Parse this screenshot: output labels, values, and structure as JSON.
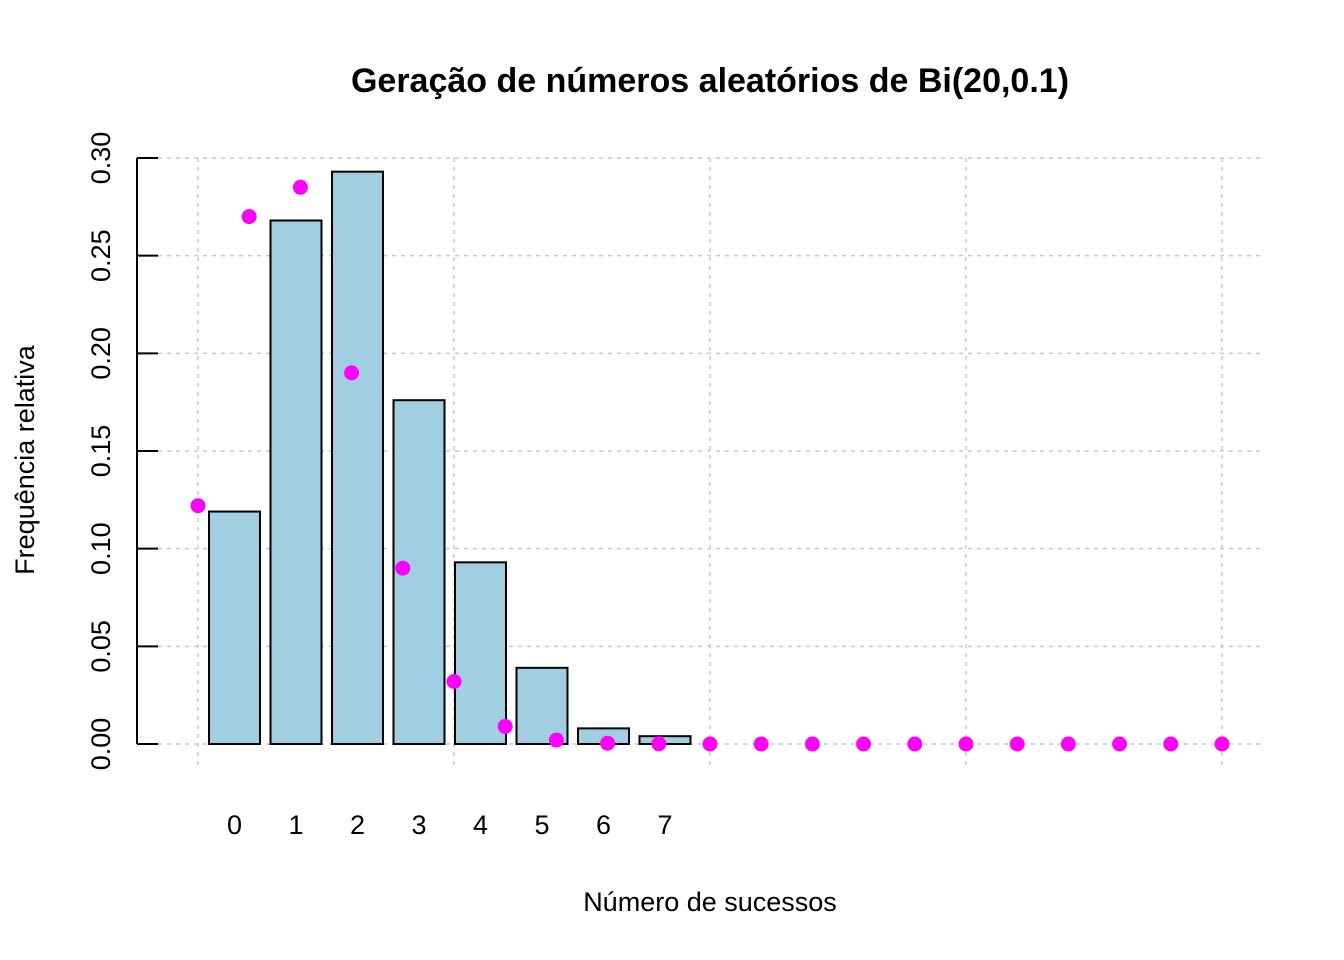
{
  "chart_data": {
    "type": "bar",
    "title": "Geração de números aleatórios de Bi(20,0.1)",
    "xlabel": "Número de sucessos",
    "ylabel": "Frequência relativa",
    "ylim": [
      0,
      0.3
    ],
    "yticks": [
      "0.00",
      "0.05",
      "0.10",
      "0.15",
      "0.20",
      "0.25",
      "0.30"
    ],
    "grid": true,
    "categories": [
      "0",
      "1",
      "2",
      "3",
      "4",
      "5",
      "6",
      "7"
    ],
    "values": [
      0.119,
      0.268,
      0.293,
      0.176,
      0.093,
      0.039,
      0.008,
      0.004
    ],
    "points": {
      "x": [
        0,
        1,
        2,
        3,
        4,
        5,
        6,
        7,
        8,
        9,
        10,
        11,
        12,
        13,
        14,
        15,
        16,
        17,
        18,
        19,
        20
      ],
      "y": [
        0.122,
        0.27,
        0.285,
        0.19,
        0.09,
        0.032,
        0.009,
        0.002,
        0.0004,
        0.0001,
        0.0,
        0.0,
        0.0,
        0.0,
        0.0,
        0.0,
        0.0,
        0.0,
        0.0,
        0.0,
        0.0
      ]
    },
    "colors": {
      "bar_fill": "#a1cfe1",
      "bar_stroke": "#000000",
      "points": "#ff00ff",
      "grid": "#c8c8c8"
    }
  }
}
